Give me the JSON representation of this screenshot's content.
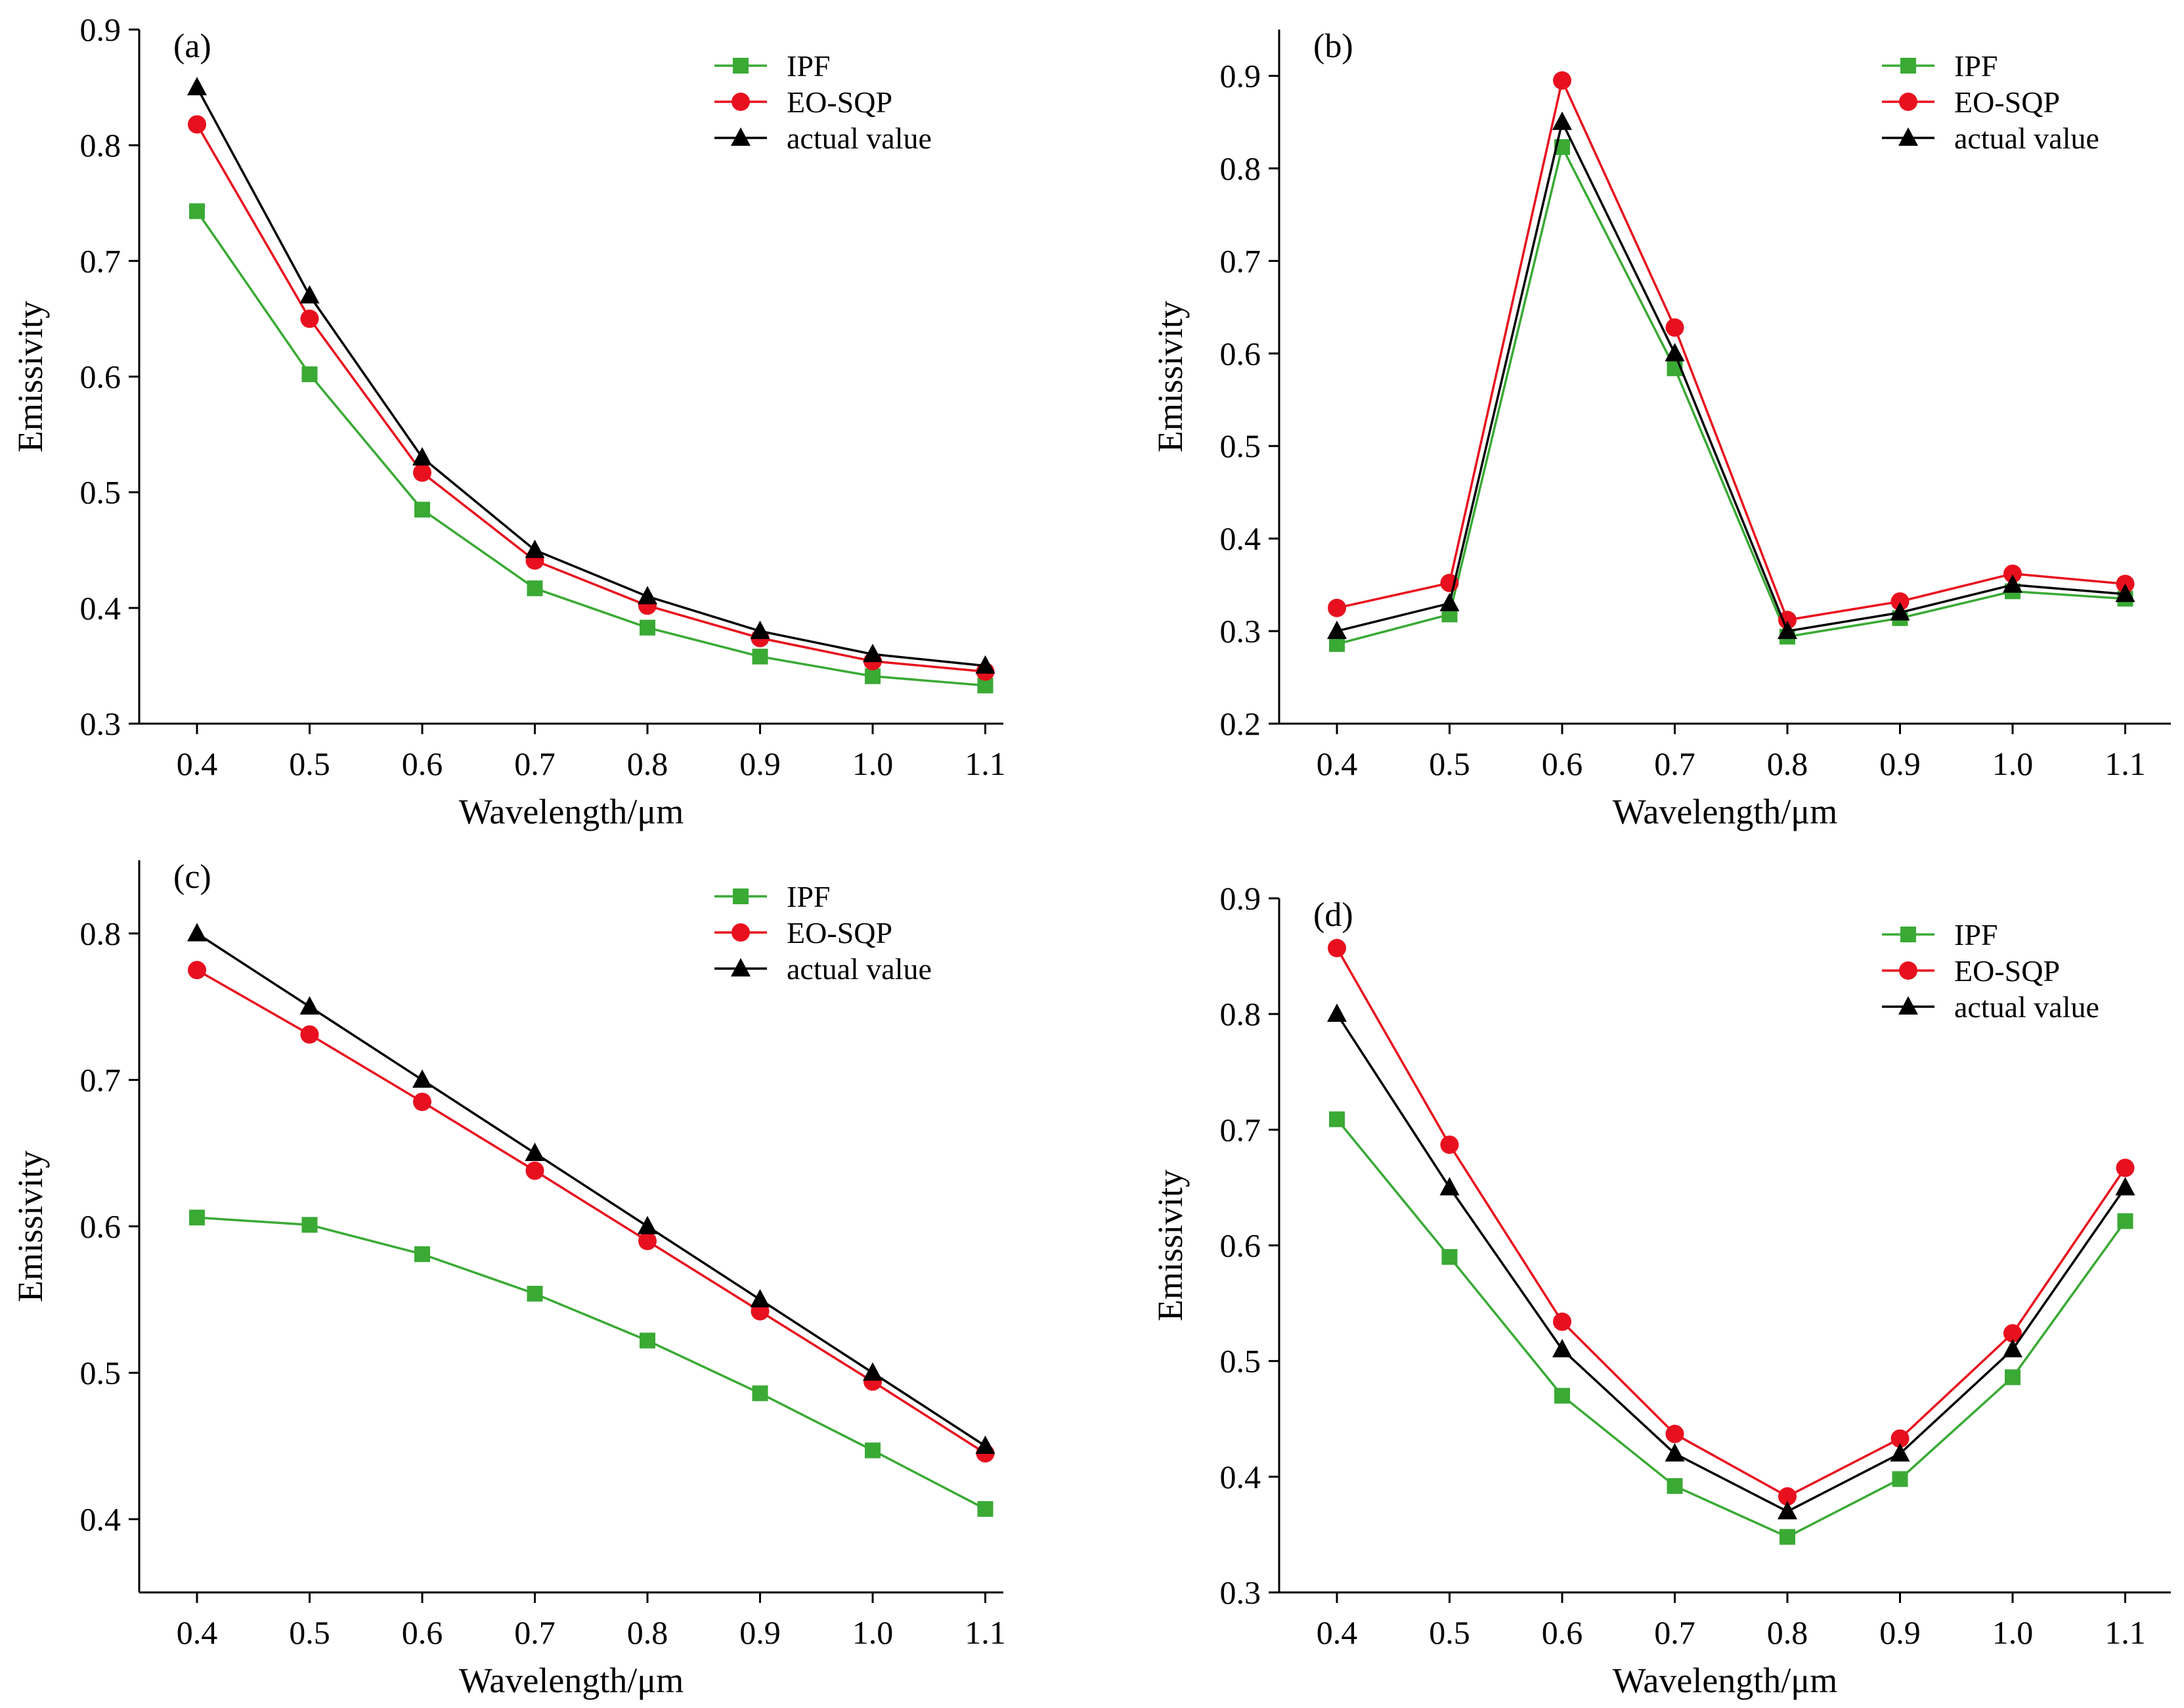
{
  "colors": {
    "ipf": "#3aaa35",
    "eo_sqp": "#e8101e",
    "actual": "#000000"
  },
  "chart_data": [
    {
      "type": "line",
      "panel_label": "(a)",
      "xlabel": "Wavelength/μm",
      "ylabel": "Emissivity",
      "x": [
        0.4,
        0.5,
        0.6,
        0.7,
        0.8,
        0.9,
        1.0,
        1.1
      ],
      "x_tick_labels": [
        "0.4",
        "0.5",
        "0.6",
        "0.7",
        "0.8",
        "0.9",
        "1.0",
        "1.1"
      ],
      "xlim": [
        0.35,
        1.15
      ],
      "ylim": [
        0.3,
        0.9
      ],
      "yticks": [
        0.3,
        0.4,
        0.5,
        0.6,
        0.7,
        0.8,
        0.9
      ],
      "y_tick_labels": [
        "0.3",
        "0.4",
        "0.5",
        "0.6",
        "0.7",
        "0.8",
        "0.9"
      ],
      "legend_position": "top-right",
      "series": [
        {
          "name": "IPF",
          "marker": "square",
          "color": "#3aaa35",
          "values": [
            0.743,
            0.602,
            0.485,
            0.417,
            0.383,
            0.358,
            0.341,
            0.333
          ]
        },
        {
          "name": "EO-SQP",
          "marker": "circle",
          "color": "#e8101e",
          "values": [
            0.818,
            0.65,
            0.517,
            0.441,
            0.402,
            0.374,
            0.354,
            0.345
          ]
        },
        {
          "name": "actual value",
          "marker": "triangle",
          "color": "#000000",
          "values": [
            0.85,
            0.67,
            0.53,
            0.45,
            0.41,
            0.38,
            0.36,
            0.35
          ]
        }
      ]
    },
    {
      "type": "line",
      "panel_label": "(b)",
      "xlabel": "Wavelength/μm",
      "ylabel": "Emissivity",
      "x": [
        0.4,
        0.5,
        0.6,
        0.7,
        0.8,
        0.9,
        1.0,
        1.1
      ],
      "x_tick_labels": [
        "0.4",
        "0.5",
        "0.6",
        "0.7",
        "0.8",
        "0.9",
        "1.0",
        "1.1"
      ],
      "xlim": [
        0.35,
        1.15
      ],
      "ylim": [
        0.2,
        0.95
      ],
      "yticks": [
        0.2,
        0.3,
        0.4,
        0.5,
        0.6,
        0.7,
        0.8,
        0.9
      ],
      "y_tick_labels": [
        "0.2",
        "0.3",
        "0.4",
        "0.5",
        "0.6",
        "0.7",
        "0.8",
        "0.9"
      ],
      "legend_position": "top-right",
      "series": [
        {
          "name": "IPF",
          "marker": "square",
          "color": "#3aaa35",
          "values": [
            0.286,
            0.318,
            0.823,
            0.584,
            0.294,
            0.314,
            0.343,
            0.335
          ]
        },
        {
          "name": "EO-SQP",
          "marker": "circle",
          "color": "#e8101e",
          "values": [
            0.325,
            0.352,
            0.895,
            0.628,
            0.312,
            0.332,
            0.362,
            0.351
          ]
        },
        {
          "name": "actual value",
          "marker": "triangle",
          "color": "#000000",
          "values": [
            0.3,
            0.33,
            0.85,
            0.6,
            0.3,
            0.32,
            0.35,
            0.34
          ]
        }
      ]
    },
    {
      "type": "line",
      "panel_label": "(c)",
      "xlabel": "Wavelength/μm",
      "ylabel": "Emissivity",
      "x": [
        0.4,
        0.5,
        0.6,
        0.7,
        0.8,
        0.9,
        1.0,
        1.1
      ],
      "x_tick_labels": [
        "0.4",
        "0.5",
        "0.6",
        "0.7",
        "0.8",
        "0.9",
        "1.0",
        "1.1"
      ],
      "xlim": [
        0.35,
        1.15
      ],
      "ylim": [
        0.35,
        0.85
      ],
      "yticks": [
        0.4,
        0.5,
        0.6,
        0.7,
        0.8
      ],
      "y_tick_labels": [
        "0.4",
        "0.5",
        "0.6",
        "0.7",
        "0.8"
      ],
      "legend_position": "top-right",
      "series": [
        {
          "name": "IPF",
          "marker": "square",
          "color": "#3aaa35",
          "values": [
            0.606,
            0.601,
            0.581,
            0.554,
            0.522,
            0.486,
            0.447,
            0.407
          ]
        },
        {
          "name": "EO-SQP",
          "marker": "circle",
          "color": "#e8101e",
          "values": [
            0.775,
            0.731,
            0.685,
            0.638,
            0.59,
            0.542,
            0.494,
            0.445
          ]
        },
        {
          "name": "actual value",
          "marker": "triangle",
          "color": "#000000",
          "values": [
            0.8,
            0.75,
            0.7,
            0.65,
            0.6,
            0.55,
            0.5,
            0.45
          ]
        }
      ]
    },
    {
      "type": "line",
      "panel_label": "(d)",
      "xlabel": "Wavelength/μm",
      "ylabel": "Emissivity",
      "x": [
        0.4,
        0.5,
        0.6,
        0.7,
        0.8,
        0.9,
        1.0,
        1.1
      ],
      "x_tick_labels": [
        "0.4",
        "0.5",
        "0.6",
        "0.7",
        "0.8",
        "0.9",
        "1.0",
        "1.1"
      ],
      "xlim": [
        0.35,
        1.15
      ],
      "ylim": [
        0.3,
        0.9
      ],
      "yticks": [
        0.3,
        0.4,
        0.5,
        0.6,
        0.7,
        0.8,
        0.9
      ],
      "y_tick_labels": [
        "0.3",
        "0.4",
        "0.5",
        "0.6",
        "0.7",
        "0.8",
        "0.9"
      ],
      "legend_position": "top-right",
      "series": [
        {
          "name": "IPF",
          "marker": "square",
          "color": "#3aaa35",
          "values": [
            0.709,
            0.59,
            0.47,
            0.392,
            0.348,
            0.398,
            0.486,
            0.621
          ]
        },
        {
          "name": "EO-SQP",
          "marker": "circle",
          "color": "#e8101e",
          "values": [
            0.857,
            0.687,
            0.534,
            0.437,
            0.383,
            0.433,
            0.524,
            0.667
          ]
        },
        {
          "name": "actual value",
          "marker": "triangle",
          "color": "#000000",
          "values": [
            0.8,
            0.65,
            0.51,
            0.42,
            0.37,
            0.42,
            0.51,
            0.65
          ]
        }
      ]
    }
  ]
}
